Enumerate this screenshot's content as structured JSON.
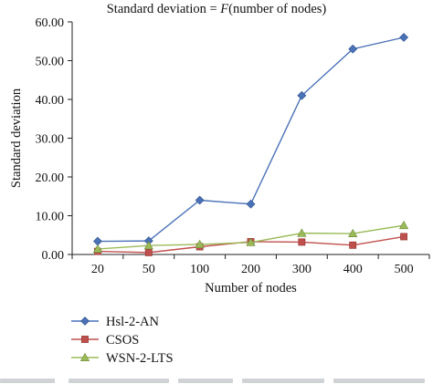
{
  "chart_data": {
    "type": "line",
    "title_prefix": "Standard deviation = ",
    "title_func": "F",
    "title_suffix": "(number of nodes)",
    "xlabel": "Number of nodes",
    "ylabel": "Standard deviation",
    "categories": [
      "20",
      "50",
      "100",
      "200",
      "300",
      "400",
      "500"
    ],
    "ylim": [
      0,
      60
    ],
    "yticks": [
      "0.00",
      "10.00",
      "20.00",
      "30.00",
      "40.00",
      "50.00",
      "60.00"
    ],
    "ytick_values": [
      0,
      10,
      20,
      30,
      40,
      50,
      60
    ],
    "grid": false,
    "legend_position": "bottom-left",
    "series": [
      {
        "name": "Hsl-2-AN",
        "color": "#4a72b8",
        "marker": "diamond",
        "values": [
          3.4,
          3.5,
          14.0,
          13.0,
          41.0,
          53.0,
          56.0
        ]
      },
      {
        "name": "CSOS",
        "color": "#c0504d",
        "marker": "square",
        "values": [
          0.8,
          0.5,
          2.0,
          3.3,
          3.2,
          2.4,
          4.6
        ]
      },
      {
        "name": "WSN-2-LTS",
        "color": "#9bbb59",
        "marker": "triangle",
        "values": [
          1.4,
          2.3,
          2.6,
          3.1,
          5.5,
          5.4,
          7.5
        ]
      }
    ]
  }
}
